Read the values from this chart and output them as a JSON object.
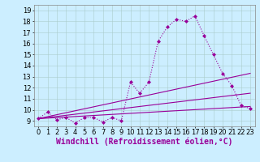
{
  "xlabel": "Windchill (Refroidissement éolien,°C)",
  "ylabel": "",
  "background_color": "#cceeff",
  "line_color": "#990099",
  "x_ticks": [
    0,
    1,
    2,
    3,
    4,
    5,
    6,
    7,
    8,
    9,
    10,
    11,
    12,
    13,
    14,
    15,
    16,
    17,
    18,
    19,
    20,
    21,
    22,
    23
  ],
  "y_ticks": [
    9,
    10,
    11,
    12,
    13,
    14,
    15,
    16,
    17,
    18,
    19
  ],
  "xlim": [
    -0.5,
    23.5
  ],
  "ylim": [
    8.5,
    19.5
  ],
  "series": [
    {
      "x": [
        0,
        1,
        2,
        3,
        4,
        5,
        6,
        7,
        8,
        9,
        10,
        11,
        12,
        13,
        14,
        15,
        16,
        17,
        18,
        19,
        20,
        21,
        22,
        23
      ],
      "y": [
        9.2,
        9.8,
        9.1,
        9.3,
        8.8,
        9.3,
        9.3,
        8.9,
        9.3,
        9.0,
        12.5,
        11.5,
        12.5,
        16.2,
        17.5,
        18.2,
        18.0,
        18.5,
        16.7,
        15.0,
        13.3,
        12.2,
        10.4,
        10.1
      ]
    },
    {
      "x": [
        0,
        23
      ],
      "y": [
        9.2,
        13.3
      ]
    },
    {
      "x": [
        0,
        23
      ],
      "y": [
        9.2,
        11.5
      ]
    },
    {
      "x": [
        0,
        23
      ],
      "y": [
        9.2,
        10.3
      ]
    }
  ],
  "grid_color": "#aacccc",
  "tick_fontsize": 6,
  "xlabel_fontsize": 7,
  "grid_linewidth": 0.4,
  "line_linewidth": 0.8,
  "marker_size": 2.0
}
